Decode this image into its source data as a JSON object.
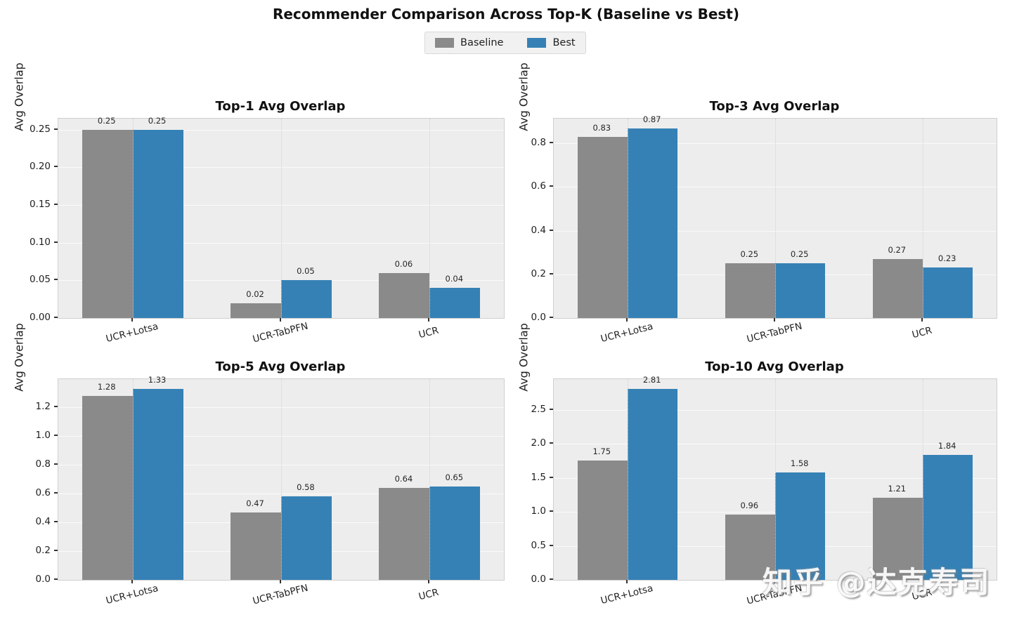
{
  "figure": {
    "suptitle": "Recommender Comparison Across Top-K (Baseline vs Best)",
    "watermark": "知乎 @达克寿司"
  },
  "legend": {
    "items": [
      {
        "label": "Baseline",
        "color": "#8a8a8a"
      },
      {
        "label": "Best",
        "color": "#3581b5"
      }
    ],
    "position": "top-center"
  },
  "colors": {
    "baseline": "#8a8a8a",
    "best": "#3581b5",
    "axes_background": "#ededed",
    "figure_background": "#ffffff"
  },
  "chart_data": [
    {
      "type": "bar",
      "title": "Top-1 Avg Overlap",
      "xlabel": "",
      "ylabel": "Avg Overlap",
      "categories": [
        "UCR+Lotsa",
        "UCR-TabPFN",
        "UCR"
      ],
      "series": [
        {
          "name": "Baseline",
          "values": [
            0.25,
            0.02,
            0.06
          ],
          "labels": [
            "0.25",
            "0.02",
            "0.06"
          ]
        },
        {
          "name": "Best",
          "values": [
            0.25,
            0.05,
            0.04
          ],
          "labels": [
            "0.25",
            "0.05",
            "0.04"
          ]
        }
      ],
      "ylim": [
        0,
        0.2646
      ],
      "yticks": [
        "0.00",
        "0.05",
        "0.10",
        "0.15",
        "0.20",
        "0.25"
      ],
      "ytick_values": [
        0,
        0.05,
        0.1,
        0.15,
        0.2,
        0.25
      ],
      "grid": true
    },
    {
      "type": "bar",
      "title": "Top-3 Avg Overlap",
      "xlabel": "",
      "ylabel": "Avg Overlap",
      "categories": [
        "UCR+Lotsa",
        "UCR-TabPFN",
        "UCR"
      ],
      "series": [
        {
          "name": "Baseline",
          "values": [
            0.83,
            0.25,
            0.27
          ],
          "labels": [
            "0.83",
            "0.25",
            "0.27"
          ]
        },
        {
          "name": "Best",
          "values": [
            0.87,
            0.25,
            0.23
          ],
          "labels": [
            "0.87",
            "0.25",
            "0.23"
          ]
        }
      ],
      "ylim": [
        0,
        0.9135
      ],
      "yticks": [
        "0.0",
        "0.2",
        "0.4",
        "0.6",
        "0.8"
      ],
      "ytick_values": [
        0,
        0.2,
        0.4,
        0.6,
        0.8
      ],
      "grid": true
    },
    {
      "type": "bar",
      "title": "Top-5 Avg Overlap",
      "xlabel": "",
      "ylabel": "Avg Overlap",
      "categories": [
        "UCR+Lotsa",
        "UCR-TabPFN",
        "UCR"
      ],
      "series": [
        {
          "name": "Baseline",
          "values": [
            1.28,
            0.47,
            0.64
          ],
          "labels": [
            "1.28",
            "0.47",
            "0.64"
          ]
        },
        {
          "name": "Best",
          "values": [
            1.33,
            0.58,
            0.65
          ],
          "labels": [
            "1.33",
            "0.58",
            "0.65"
          ]
        }
      ],
      "ylim": [
        0,
        1.3965
      ],
      "yticks": [
        "0.0",
        "0.2",
        "0.4",
        "0.6",
        "0.8",
        "1.0",
        "1.2"
      ],
      "ytick_values": [
        0,
        0.2,
        0.4,
        0.6,
        0.8,
        1.0,
        1.2
      ],
      "grid": true
    },
    {
      "type": "bar",
      "title": "Top-10 Avg Overlap",
      "xlabel": "",
      "ylabel": "Avg Overlap",
      "categories": [
        "UCR+Lotsa",
        "UCR-TabPFN",
        "UCR"
      ],
      "series": [
        {
          "name": "Baseline",
          "values": [
            1.75,
            0.96,
            1.21
          ],
          "labels": [
            "1.75",
            "0.96",
            "1.21"
          ]
        },
        {
          "name": "Best",
          "values": [
            2.81,
            1.58,
            1.84
          ],
          "labels": [
            "2.81",
            "1.58",
            "1.84"
          ]
        }
      ],
      "ylim": [
        0,
        2.9505
      ],
      "yticks": [
        "0.0",
        "0.5",
        "1.0",
        "1.5",
        "2.0",
        "2.5"
      ],
      "ytick_values": [
        0,
        0.5,
        1.0,
        1.5,
        2.0,
        2.5
      ],
      "grid": true
    }
  ]
}
